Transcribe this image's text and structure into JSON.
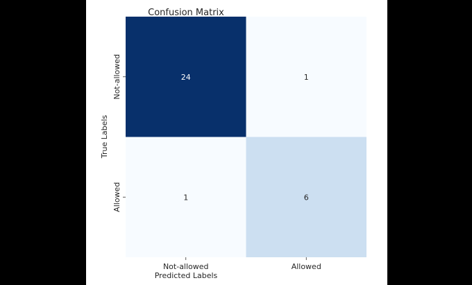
{
  "chart_data": {
    "type": "heatmap",
    "title": "Confusion Matrix",
    "xlabel": "Predicted Labels",
    "ylabel": "True Labels",
    "x_categories": [
      "Not-allowed",
      "Allowed"
    ],
    "y_categories": [
      "Not-allowed",
      "Allowed"
    ],
    "values": [
      [
        24,
        1
      ],
      [
        1,
        6
      ]
    ],
    "colormap": "Blues",
    "color_low": "#f7fbff",
    "color_high": "#08306b",
    "value_range": [
      1,
      24
    ],
    "annotations": true,
    "colorbar": false
  }
}
